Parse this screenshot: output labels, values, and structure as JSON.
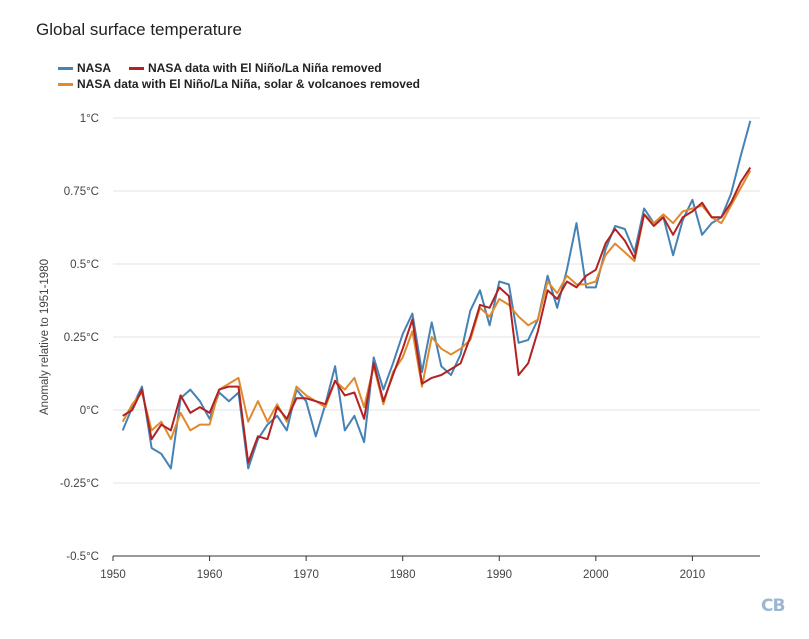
{
  "chart_data": {
    "type": "line",
    "title": "Global surface temperature",
    "xlabel": "",
    "ylabel": "Anomaly relative to 1951-1980",
    "xlim": [
      1950,
      2017
    ],
    "ylim": [
      -0.5,
      1.0
    ],
    "grid": true,
    "legend_position": "top-left",
    "x_ticks": [
      1950,
      1960,
      1970,
      1980,
      1990,
      2000,
      2010
    ],
    "x_tick_labels": [
      "1950",
      "1960",
      "1970",
      "1980",
      "1990",
      "2000",
      "2010"
    ],
    "y_ticks": [
      -0.5,
      -0.25,
      0,
      0.25,
      0.5,
      0.75,
      1.0
    ],
    "y_tick_labels": [
      "-0.5°C",
      "-0.25°C",
      "0°C",
      "0.25°C",
      "0.5°C",
      "0.75°C",
      "1°C"
    ],
    "x": [
      1951,
      1952,
      1953,
      1954,
      1955,
      1956,
      1957,
      1958,
      1959,
      1960,
      1961,
      1962,
      1963,
      1964,
      1965,
      1966,
      1967,
      1968,
      1969,
      1970,
      1971,
      1972,
      1973,
      1974,
      1975,
      1976,
      1977,
      1978,
      1979,
      1980,
      1981,
      1982,
      1983,
      1984,
      1985,
      1986,
      1987,
      1988,
      1989,
      1990,
      1991,
      1992,
      1993,
      1994,
      1995,
      1996,
      1997,
      1998,
      1999,
      2000,
      2001,
      2002,
      2003,
      2004,
      2005,
      2006,
      2007,
      2008,
      2009,
      2010,
      2011,
      2012,
      2013,
      2014,
      2015,
      2016
    ],
    "series": [
      {
        "name": "NASA",
        "color": "#4682b4",
        "values": [
          -0.07,
          0.01,
          0.08,
          -0.13,
          -0.15,
          -0.2,
          0.04,
          0.07,
          0.03,
          -0.03,
          0.06,
          0.03,
          0.06,
          -0.2,
          -0.1,
          -0.05,
          -0.02,
          -0.07,
          0.07,
          0.03,
          -0.09,
          0.02,
          0.15,
          -0.07,
          -0.02,
          -0.11,
          0.18,
          0.07,
          0.16,
          0.26,
          0.33,
          0.13,
          0.3,
          0.15,
          0.12,
          0.19,
          0.34,
          0.41,
          0.29,
          0.44,
          0.43,
          0.23,
          0.24,
          0.31,
          0.46,
          0.35,
          0.48,
          0.64,
          0.42,
          0.42,
          0.55,
          0.63,
          0.62,
          0.54,
          0.69,
          0.64,
          0.66,
          0.53,
          0.65,
          0.72,
          0.6,
          0.64,
          0.66,
          0.74,
          0.87,
          0.99
        ]
      },
      {
        "name": "NASA data with El Niño/La Niña removed",
        "color": "#b22222",
        "values": [
          -0.02,
          0.0,
          0.07,
          -0.1,
          -0.05,
          -0.07,
          0.05,
          -0.01,
          0.01,
          -0.01,
          0.07,
          0.08,
          0.08,
          -0.18,
          -0.09,
          -0.1,
          0.01,
          -0.03,
          0.04,
          0.04,
          0.03,
          0.02,
          0.1,
          0.05,
          0.06,
          -0.03,
          0.16,
          0.03,
          0.12,
          0.21,
          0.31,
          0.09,
          0.11,
          0.12,
          0.14,
          0.16,
          0.25,
          0.36,
          0.35,
          0.42,
          0.39,
          0.12,
          0.16,
          0.27,
          0.41,
          0.38,
          0.44,
          0.42,
          0.46,
          0.48,
          0.57,
          0.62,
          0.58,
          0.52,
          0.67,
          0.63,
          0.66,
          0.6,
          0.66,
          0.68,
          0.71,
          0.66,
          0.66,
          0.71,
          0.78,
          0.83
        ]
      },
      {
        "name": "NASA data with El Niño/La Niña, solar & volcanoes removed",
        "color": "#e08a2e",
        "values": [
          -0.04,
          0.02,
          0.06,
          -0.07,
          -0.04,
          -0.1,
          -0.01,
          -0.07,
          -0.05,
          -0.05,
          0.07,
          0.09,
          0.11,
          -0.04,
          0.03,
          -0.04,
          0.02,
          -0.04,
          0.08,
          0.05,
          0.03,
          0.01,
          0.1,
          0.07,
          0.11,
          0.01,
          0.15,
          0.02,
          0.13,
          0.18,
          0.27,
          0.08,
          0.25,
          0.21,
          0.19,
          0.21,
          0.24,
          0.35,
          0.32,
          0.38,
          0.36,
          0.32,
          0.29,
          0.31,
          0.44,
          0.4,
          0.46,
          0.43,
          0.43,
          0.44,
          0.53,
          0.57,
          0.54,
          0.51,
          0.67,
          0.64,
          0.67,
          0.64,
          0.68,
          0.69,
          0.7,
          0.66,
          0.64,
          0.7,
          0.76,
          0.82
        ]
      }
    ]
  },
  "brand": {
    "logo_text": "CB"
  }
}
